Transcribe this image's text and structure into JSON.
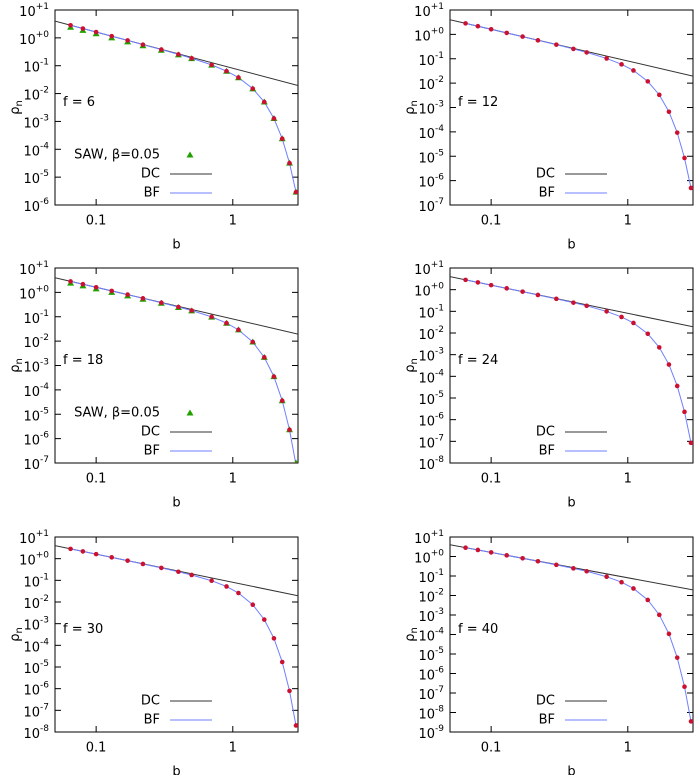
{
  "chart_data": [
    {
      "type": "line",
      "log_x": true,
      "log_y": true,
      "annotation": "f = 6",
      "x_label": "b",
      "y_label": "ρn",
      "legend": "bottom-left",
      "xlim": [
        0.05,
        3
      ],
      "xticks": [
        0.1,
        1
      ],
      "ylim": [
        1e-06,
        10
      ],
      "yticks": [
        {
          "value": 10,
          "label": "10+1"
        },
        {
          "value": 1,
          "label": "10+0"
        },
        {
          "value": 0.1,
          "label": "10-1"
        },
        {
          "value": 0.01,
          "label": "10-2"
        },
        {
          "value": 0.001,
          "label": "10-3"
        },
        {
          "value": 0.0001,
          "label": "10-4"
        },
        {
          "value": 1e-05,
          "label": "10-5"
        },
        {
          "value": 1e-06,
          "label": "10-6"
        }
      ],
      "x": [
        0.065,
        0.08,
        0.1,
        0.13,
        0.17,
        0.22,
        0.3,
        0.4,
        0.5,
        0.7,
        0.9,
        1.1,
        1.4,
        1.7,
        2.0,
        2.3,
        2.6,
        2.9
      ],
      "series": [
        {
          "name": "SAW, β=0.05",
          "color": "#22a000",
          "marker": "triangle",
          "values": [
            2.4,
            1.85,
            1.4,
            1.0,
            0.72,
            0.52,
            0.36,
            0.245,
            0.18,
            0.105,
            0.063,
            0.037,
            0.0148,
            0.005,
            0.00128,
            0.00024,
            3.2e-05,
            2.9e-06
          ]
        },
        {
          "name": "DC",
          "color": "#333333",
          "marker": "line",
          "x": [
            0.05,
            3
          ],
          "values": [
            3.98,
            0.0194
          ]
        },
        {
          "name": "BF",
          "color": "#6f7fff",
          "marker": "line",
          "values": [
            2.83,
            2.16,
            1.62,
            1.15,
            0.81,
            0.57,
            0.38,
            0.255,
            0.185,
            0.107,
            0.064,
            0.0376,
            0.015,
            0.005,
            0.00128,
            0.00024,
            3.2e-05,
            2.9e-06
          ]
        },
        {
          "color": "#cc1030",
          "marker": "circle",
          "values": [
            2.83,
            2.16,
            1.62,
            1.15,
            0.81,
            0.57,
            0.38,
            0.255,
            0.185,
            0.107,
            0.064,
            0.0376,
            0.015,
            0.005,
            0.00128,
            0.00024,
            3.2e-05,
            2.9e-06
          ]
        }
      ]
    },
    {
      "type": "line",
      "log_x": true,
      "log_y": true,
      "annotation": "f = 12",
      "x_label": "b",
      "y_label": "ρn",
      "legend": "bottom-left",
      "xlim": [
        0.05,
        3
      ],
      "xticks": [
        0.1,
        1
      ],
      "ylim": [
        1e-07,
        10
      ],
      "yticks": [
        {
          "value": 10,
          "label": "10+1"
        },
        {
          "value": 1,
          "label": "10+0"
        },
        {
          "value": 0.1,
          "label": "10-1"
        },
        {
          "value": 0.01,
          "label": "10-2"
        },
        {
          "value": 0.001,
          "label": "10-3"
        },
        {
          "value": 0.0001,
          "label": "10-4"
        },
        {
          "value": 1e-05,
          "label": "10-5"
        },
        {
          "value": 1e-06,
          "label": "10-6"
        },
        {
          "value": 1e-07,
          "label": "10-7"
        }
      ],
      "x": [
        0.065,
        0.08,
        0.1,
        0.13,
        0.17,
        0.22,
        0.3,
        0.4,
        0.5,
        0.7,
        0.9,
        1.1,
        1.4,
        1.7,
        2.0,
        2.3,
        2.6,
        2.9
      ],
      "series": [
        {
          "name": "DC",
          "color": "#333333",
          "marker": "line",
          "x": [
            0.05,
            3
          ],
          "values": [
            3.98,
            0.0194
          ]
        },
        {
          "name": "BF",
          "color": "#6f7fff",
          "marker": "line",
          "values": [
            2.83,
            2.16,
            1.62,
            1.15,
            0.81,
            0.57,
            0.378,
            0.253,
            0.182,
            0.103,
            0.059,
            0.033,
            0.0118,
            0.0033,
            0.00067,
            9.3e-05,
            8.5e-06,
            5e-07
          ]
        },
        {
          "color": "#cc1030",
          "marker": "circle",
          "values": [
            2.83,
            2.16,
            1.62,
            1.15,
            0.81,
            0.57,
            0.378,
            0.253,
            0.182,
            0.103,
            0.059,
            0.033,
            0.0118,
            0.0033,
            0.00067,
            9.3e-05,
            8.5e-06,
            5e-07
          ]
        }
      ]
    },
    {
      "type": "line",
      "log_x": true,
      "log_y": true,
      "annotation": "f = 18",
      "x_label": "b",
      "y_label": "ρn",
      "legend": "bottom-left",
      "xlim": [
        0.05,
        3
      ],
      "xticks": [
        0.1,
        1
      ],
      "ylim": [
        1e-07,
        10
      ],
      "yticks": [
        {
          "value": 10,
          "label": "10+1"
        },
        {
          "value": 1,
          "label": "10+0"
        },
        {
          "value": 0.1,
          "label": "10-1"
        },
        {
          "value": 0.01,
          "label": "10-2"
        },
        {
          "value": 0.001,
          "label": "10-3"
        },
        {
          "value": 0.0001,
          "label": "10-4"
        },
        {
          "value": 1e-05,
          "label": "10-5"
        },
        {
          "value": 1e-06,
          "label": "10-6"
        },
        {
          "value": 1e-07,
          "label": "10-7"
        }
      ],
      "x": [
        0.065,
        0.08,
        0.1,
        0.13,
        0.17,
        0.22,
        0.3,
        0.4,
        0.5,
        0.7,
        0.9,
        1.1,
        1.4,
        1.7,
        2.0,
        2.3,
        2.6,
        2.9
      ],
      "series": [
        {
          "name": "SAW, β=0.05",
          "color": "#22a000",
          "marker": "triangle",
          "values": [
            2.4,
            1.85,
            1.4,
            1.0,
            0.72,
            0.52,
            0.36,
            0.24,
            0.175,
            0.097,
            0.054,
            0.029,
            0.0092,
            0.00216,
            0.00035,
            3.6e-05,
            2.3e-06,
            1e-07
          ]
        },
        {
          "name": "DC",
          "color": "#333333",
          "marker": "line",
          "x": [
            0.05,
            3
          ],
          "values": [
            3.98,
            0.0194
          ]
        },
        {
          "name": "BF",
          "color": "#6f7fff",
          "marker": "line",
          "values": [
            2.83,
            2.16,
            1.62,
            1.15,
            0.81,
            0.57,
            0.377,
            0.251,
            0.18,
            0.099,
            0.055,
            0.029,
            0.0092,
            0.00216,
            0.00035,
            3.6e-05,
            2.3e-06,
            8.5e-08
          ]
        },
        {
          "color": "#cc1030",
          "marker": "circle",
          "values": [
            2.83,
            2.16,
            1.62,
            1.15,
            0.81,
            0.57,
            0.377,
            0.251,
            0.18,
            0.099,
            0.055,
            0.029,
            0.0092,
            0.00216,
            0.00035,
            3.6e-05,
            2.3e-06,
            8.5e-08
          ]
        }
      ]
    },
    {
      "type": "line",
      "log_x": true,
      "log_y": true,
      "annotation": "f = 24",
      "x_label": "b",
      "y_label": "ρn",
      "legend": "bottom-left",
      "xlim": [
        0.05,
        3
      ],
      "xticks": [
        0.1,
        1
      ],
      "ylim": [
        1e-08,
        10
      ],
      "yticks": [
        {
          "value": 10,
          "label": "10+1"
        },
        {
          "value": 1,
          "label": "10+0"
        },
        {
          "value": 0.1,
          "label": "10-1"
        },
        {
          "value": 0.01,
          "label": "10-2"
        },
        {
          "value": 0.001,
          "label": "10-3"
        },
        {
          "value": 0.0001,
          "label": "10-4"
        },
        {
          "value": 1e-05,
          "label": "10-5"
        },
        {
          "value": 1e-06,
          "label": "10-6"
        },
        {
          "value": 1e-07,
          "label": "10-7"
        },
        {
          "value": 1e-08,
          "label": "10-8"
        }
      ],
      "x": [
        0.065,
        0.08,
        0.1,
        0.13,
        0.17,
        0.22,
        0.3,
        0.4,
        0.5,
        0.7,
        0.9,
        1.1,
        1.4,
        1.7,
        2.0,
        2.3,
        2.6,
        2.9
      ],
      "series": [
        {
          "name": "DC",
          "color": "#333333",
          "marker": "line",
          "x": [
            0.05,
            3
          ],
          "values": [
            3.98,
            0.0194
          ]
        },
        {
          "name": "BF",
          "color": "#6f7fff",
          "marker": "line",
          "values": [
            2.83,
            2.16,
            1.62,
            1.15,
            0.81,
            0.57,
            0.377,
            0.251,
            0.18,
            0.099,
            0.055,
            0.029,
            0.0092,
            0.00216,
            0.00035,
            3.6e-05,
            2.3e-06,
            8.5e-08
          ]
        },
        {
          "color": "#cc1030",
          "marker": "circle",
          "values": [
            2.83,
            2.16,
            1.62,
            1.15,
            0.81,
            0.57,
            0.377,
            0.251,
            0.18,
            0.099,
            0.055,
            0.029,
            0.0092,
            0.00216,
            0.00035,
            3.6e-05,
            2.3e-06,
            8.5e-08
          ]
        }
      ]
    },
    {
      "type": "line",
      "log_x": true,
      "log_y": true,
      "annotation": "f = 30",
      "x_label": "b",
      "y_label": "ρn",
      "legend": "bottom-left",
      "xlim": [
        0.05,
        3
      ],
      "xticks": [
        0.1,
        1
      ],
      "ylim": [
        1e-08,
        10
      ],
      "yticks": [
        {
          "value": 10,
          "label": "10+1"
        },
        {
          "value": 1,
          "label": "10+0"
        },
        {
          "value": 0.1,
          "label": "10-1"
        },
        {
          "value": 0.01,
          "label": "10-2"
        },
        {
          "value": 0.001,
          "label": "10-3"
        },
        {
          "value": 0.0001,
          "label": "10-4"
        },
        {
          "value": 1e-05,
          "label": "10-5"
        },
        {
          "value": 1e-06,
          "label": "10-6"
        },
        {
          "value": 1e-07,
          "label": "10-7"
        },
        {
          "value": 1e-08,
          "label": "10-8"
        }
      ],
      "x": [
        0.065,
        0.08,
        0.1,
        0.13,
        0.17,
        0.22,
        0.3,
        0.4,
        0.5,
        0.7,
        0.9,
        1.1,
        1.4,
        1.7,
        2.0,
        2.3,
        2.6,
        2.9
      ],
      "series": [
        {
          "name": "DC",
          "color": "#333333",
          "marker": "line",
          "x": [
            0.05,
            3
          ],
          "values": [
            3.98,
            0.0194
          ]
        },
        {
          "name": "BF",
          "color": "#6f7fff",
          "marker": "line",
          "values": [
            2.83,
            2.16,
            1.62,
            1.15,
            0.81,
            0.57,
            0.375,
            0.249,
            0.177,
            0.096,
            0.052,
            0.026,
            0.0075,
            0.00154,
            0.00021,
            1.7e-05,
            7.9e-07,
            2e-08
          ]
        },
        {
          "color": "#cc1030",
          "marker": "circle",
          "values": [
            2.83,
            2.16,
            1.62,
            1.15,
            0.81,
            0.57,
            0.375,
            0.249,
            0.177,
            0.096,
            0.052,
            0.026,
            0.0075,
            0.00154,
            0.00021,
            1.7e-05,
            7.9e-07,
            2e-08
          ]
        }
      ]
    },
    {
      "type": "line",
      "log_x": true,
      "log_y": true,
      "annotation": "f = 40",
      "x_label": "b",
      "y_label": "ρn",
      "legend": "bottom-left",
      "xlim": [
        0.05,
        3
      ],
      "xticks": [
        0.1,
        1
      ],
      "ylim": [
        1e-09,
        10
      ],
      "yticks": [
        {
          "value": 10,
          "label": "10+1"
        },
        {
          "value": 1,
          "label": "10+0"
        },
        {
          "value": 0.1,
          "label": "10-1"
        },
        {
          "value": 0.01,
          "label": "10-2"
        },
        {
          "value": 0.001,
          "label": "10-3"
        },
        {
          "value": 0.0001,
          "label": "10-4"
        },
        {
          "value": 1e-05,
          "label": "10-5"
        },
        {
          "value": 1e-06,
          "label": "10-6"
        },
        {
          "value": 1e-07,
          "label": "10-7"
        },
        {
          "value": 1e-08,
          "label": "10-8"
        },
        {
          "value": 1e-09,
          "label": "10-9"
        }
      ],
      "x": [
        0.065,
        0.08,
        0.1,
        0.13,
        0.17,
        0.22,
        0.3,
        0.4,
        0.5,
        0.7,
        0.9,
        1.1,
        1.4,
        1.7,
        2.0,
        2.3,
        2.6,
        2.9
      ],
      "series": [
        {
          "name": "DC",
          "color": "#333333",
          "marker": "line",
          "x": [
            0.05,
            3
          ],
          "values": [
            3.98,
            0.0194
          ]
        },
        {
          "name": "BF",
          "color": "#6f7fff",
          "marker": "line",
          "values": [
            2.83,
            2.16,
            1.62,
            1.15,
            0.81,
            0.57,
            0.374,
            0.247,
            0.175,
            0.092,
            0.048,
            0.023,
            0.0059,
            0.00102,
            0.000108,
            6.5e-06,
            2.1e-07,
            3.5e-09
          ]
        },
        {
          "color": "#cc1030",
          "marker": "circle",
          "values": [
            2.83,
            2.16,
            1.62,
            1.15,
            0.81,
            0.57,
            0.374,
            0.247,
            0.175,
            0.092,
            0.048,
            0.023,
            0.0059,
            0.00102,
            0.000108,
            6.5e-06,
            2.1e-07,
            3.5e-09
          ]
        }
      ]
    }
  ]
}
